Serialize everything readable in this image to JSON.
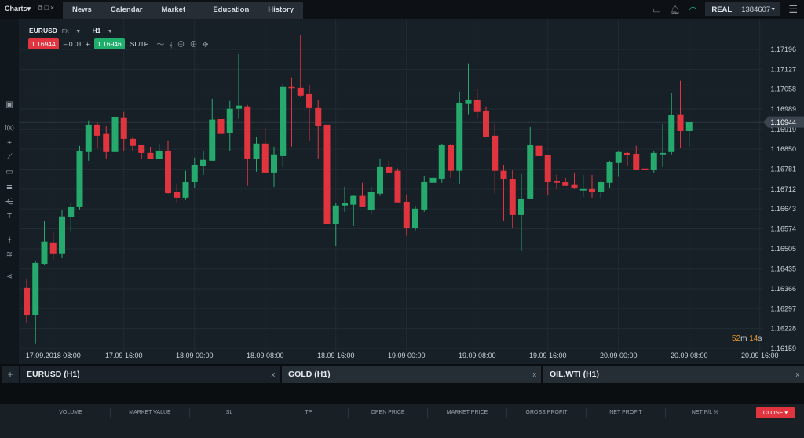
{
  "topbar": {
    "charts_label": "Charts",
    "nav": [
      "News",
      "Calendar",
      "Market analysis",
      "Education",
      "History"
    ],
    "account_type": "REAL",
    "account_number": "1384607"
  },
  "symbol": {
    "name": "EURUSD",
    "market": "FX",
    "timeframe": "H1",
    "sell": "1.16944",
    "spread": "0.01",
    "buy": "1.16946",
    "sltp": "SL/TP"
  },
  "countdown": {
    "min": "52",
    "min_unit": "m",
    "sec": "14",
    "sec_unit": "s"
  },
  "colors": {
    "up": "#26a96c",
    "down": "#e0353f",
    "background": "#172027",
    "grid": "#212b33"
  },
  "chart_tabs": [
    {
      "label": "EURUSD (H1)",
      "active": true
    },
    {
      "label": "GOLD (H1)",
      "active": false
    },
    {
      "label": "OIL.WTI (H1)",
      "active": false
    }
  ],
  "positions": {
    "columns": [
      "VOLUME",
      "MARKET VALUE",
      "SL",
      "TP",
      "OPEN PRICE",
      "MARKET PRICE",
      "GROSS PROFIT",
      "NET PROFIT",
      "NET P/L %"
    ],
    "close_label": "CLOSE"
  },
  "chart_data": {
    "type": "candlestick",
    "price_ticks": [
      "1.17196",
      "1.17127",
      "1.17058",
      "1.16989",
      "1.16919",
      "1.16850",
      "1.16781",
      "1.16712",
      "1.16643",
      "1.16574",
      "1.16505",
      "1.16435",
      "1.16366",
      "1.16297",
      "1.16228",
      "1.16159"
    ],
    "time_ticks": [
      "17.09.2018 08:00",
      "17.09 16:00",
      "18.09 00:00",
      "18.09 08:00",
      "18.09 16:00",
      "19.09 00:00",
      "19.09 08:00",
      "19.09 16:00",
      "20.09 00:00",
      "20.09 08:00",
      "20.09 16:00"
    ],
    "current_price": "1.16944",
    "ylim": [
      1.16159,
      1.17196
    ],
    "ohlc": [
      [
        1.16369,
        1.16399,
        1.16247,
        1.16276
      ],
      [
        1.16276,
        1.16464,
        1.16176,
        1.16456
      ],
      [
        1.16453,
        1.166,
        1.16448,
        1.1653
      ],
      [
        1.16527,
        1.1656,
        1.16467,
        1.16489
      ],
      [
        1.16489,
        1.16638,
        1.16472,
        1.16617
      ],
      [
        1.16614,
        1.16663,
        1.16565,
        1.16649
      ],
      [
        1.16649,
        1.16862,
        1.16641,
        1.16843
      ],
      [
        1.1684,
        1.16949,
        1.1681,
        1.16935
      ],
      [
        1.16935,
        1.16943,
        1.16854,
        1.16897
      ],
      [
        1.16903,
        1.16932,
        1.16818,
        1.1684
      ],
      [
        1.1684,
        1.16976,
        1.1684,
        1.16962
      ],
      [
        1.1696,
        1.16979,
        1.16843,
        1.16886
      ],
      [
        1.16886,
        1.16894,
        1.16843,
        1.16862
      ],
      [
        1.16864,
        1.16864,
        1.16815,
        1.16837
      ],
      [
        1.16837,
        1.16859,
        1.16815,
        1.16815
      ],
      [
        1.16815,
        1.16867,
        1.16815,
        1.16845
      ],
      [
        1.16845,
        1.16881,
        1.16696,
        1.16698
      ],
      [
        1.16701,
        1.16731,
        1.16666,
        1.16682
      ],
      [
        1.16682,
        1.16775,
        1.16674,
        1.16736
      ],
      [
        1.16736,
        1.16821,
        1.16715,
        1.16796
      ],
      [
        1.16791,
        1.16843,
        1.16761,
        1.16813
      ],
      [
        1.1681,
        1.17025,
        1.1681,
        1.16952
      ],
      [
        1.16954,
        1.1702,
        1.16894,
        1.16903
      ],
      [
        1.16905,
        1.17017,
        1.16843,
        1.1699
      ],
      [
        1.1699,
        1.1718,
        1.16957,
        1.17001
      ],
      [
        1.16998,
        1.17003,
        1.16723,
        1.16815
      ],
      [
        1.16815,
        1.16894,
        1.16772,
        1.1687
      ],
      [
        1.1687,
        1.16924,
        1.16766,
        1.16769
      ],
      [
        1.16769,
        1.16859,
        1.1672,
        1.16832
      ],
      [
        1.16826,
        1.17077,
        1.16788,
        1.17066
      ],
      [
        1.17066,
        1.17099,
        1.16859,
        1.17063
      ],
      [
        1.17063,
        1.17246,
        1.17033,
        1.17036
      ],
      [
        1.17041,
        1.17074,
        1.16881,
        1.16995
      ],
      [
        1.16995,
        1.1702,
        1.16818,
        1.1693
      ],
      [
        1.16935,
        1.16949,
        1.16543,
        1.1659
      ],
      [
        1.1659,
        1.16663,
        1.16513,
        1.16655
      ],
      [
        1.16655,
        1.1672,
        1.16633,
        1.16663
      ],
      [
        1.16658,
        1.1669,
        1.16584,
        1.16688
      ],
      [
        1.16688,
        1.16734,
        1.16649,
        1.16649
      ],
      [
        1.16638,
        1.1672,
        1.16625,
        1.16701
      ],
      [
        1.16696,
        1.16818,
        1.16688,
        1.16788
      ],
      [
        1.16788,
        1.1681,
        1.16769,
        1.16769
      ],
      [
        1.16775,
        1.16783,
        1.16666,
        1.16666
      ],
      [
        1.16668,
        1.16693,
        1.16549,
        1.16576
      ],
      [
        1.16576,
        1.16652,
        1.16568,
        1.16644
      ],
      [
        1.16641,
        1.16758,
        1.16633,
        1.16736
      ],
      [
        1.16734,
        1.16769,
        1.16701,
        1.1675
      ],
      [
        1.16747,
        1.16867,
        1.16734,
        1.16864
      ],
      [
        1.16864,
        1.16867,
        1.1675,
        1.16775
      ],
      [
        1.16775,
        1.1705,
        1.16731,
        1.17011
      ],
      [
        1.17009,
        1.17148,
        1.16971,
        1.17022
      ],
      [
        1.17022,
        1.17058,
        1.16957,
        1.16979
      ],
      [
        1.16982,
        1.16998,
        1.16894,
        1.16894
      ],
      [
        1.16897,
        1.16938,
        1.16696,
        1.16775
      ],
      [
        1.16775,
        1.16796,
        1.16603,
        1.16747
      ],
      [
        1.16747,
        1.16777,
        1.16576,
        1.16622
      ],
      [
        1.16622,
        1.16764,
        1.16497,
        1.16679
      ],
      [
        1.16679,
        1.16927,
        1.16679,
        1.16864
      ],
      [
        1.16862,
        1.16908,
        1.16794,
        1.16826
      ],
      [
        1.16829,
        1.16829,
        1.1669,
        1.16736
      ],
      [
        1.16739,
        1.16761,
        1.16712,
        1.16734
      ],
      [
        1.16736,
        1.1675,
        1.16723,
        1.16723
      ],
      [
        1.16726,
        1.16769,
        1.16712,
        1.16717
      ],
      [
        1.16707,
        1.16761,
        1.16685,
        1.16712
      ],
      [
        1.16712,
        1.16761,
        1.16682,
        1.16701
      ],
      [
        1.16701,
        1.16742,
        1.16682,
        1.16736
      ],
      [
        1.16734,
        1.1681,
        1.16717,
        1.16805
      ],
      [
        1.16802,
        1.16845,
        1.16756,
        1.1684
      ],
      [
        1.16837,
        1.1684,
        1.16794,
        1.16829
      ],
      [
        1.16834,
        1.16862,
        1.16777,
        1.16777
      ],
      [
        1.16783,
        1.16854,
        1.16769,
        1.16777
      ],
      [
        1.16777,
        1.16845,
        1.16769,
        1.16837
      ],
      [
        1.16832,
        1.16938,
        1.16788,
        1.16837
      ],
      [
        1.1684,
        1.17044,
        1.16832,
        1.16968
      ],
      [
        1.16971,
        1.17088,
        1.16854,
        1.16913
      ],
      [
        1.16913,
        1.16943,
        1.16859,
        1.16944
      ]
    ]
  }
}
